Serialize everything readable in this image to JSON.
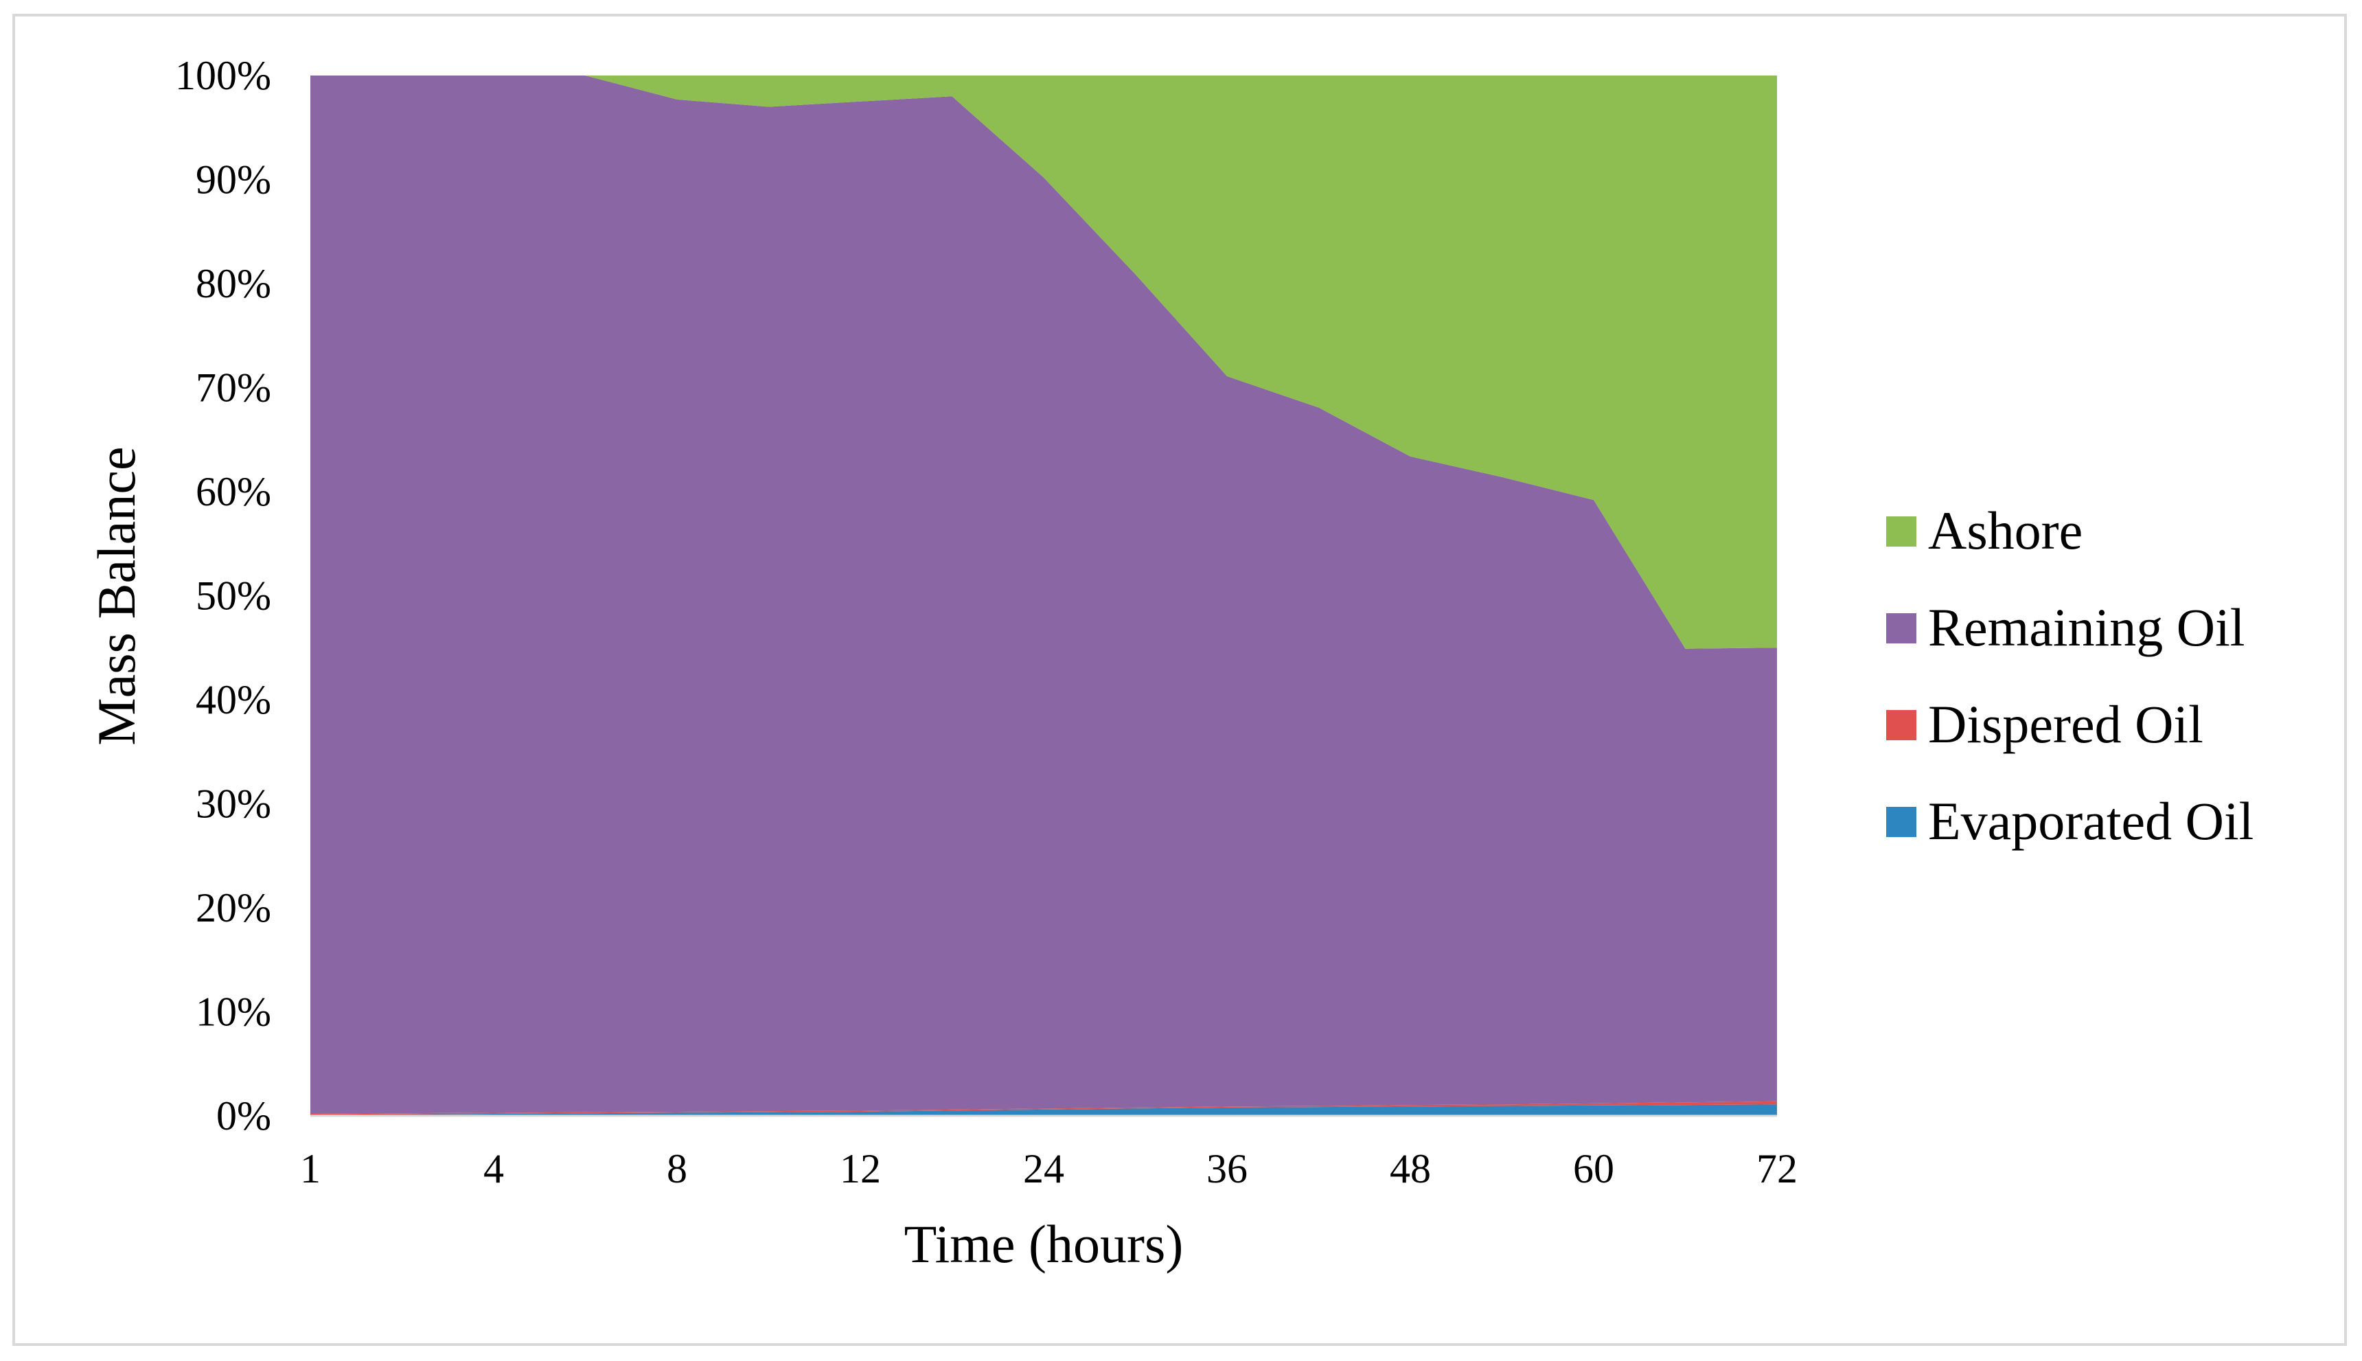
{
  "chart_data": {
    "type": "area",
    "stacked": true,
    "percent_stacked": true,
    "title": "",
    "xlabel": "Time (hours)",
    "ylabel": "Mass Balance",
    "x_tick_labels": [
      "1",
      "4",
      "8",
      "12",
      "24",
      "36",
      "48",
      "60",
      "72"
    ],
    "x_points": 17,
    "ylim": [
      0,
      100
    ],
    "y_ticks": [
      "0%",
      "10%",
      "20%",
      "30%",
      "40%",
      "50%",
      "60%",
      "70%",
      "80%",
      "90%",
      "100%"
    ],
    "grid": false,
    "legend_position": "right",
    "series": [
      {
        "name": "Evaporated Oil",
        "color": "#2e86c1",
        "values": [
          0.1,
          0.15,
          0.2,
          0.25,
          0.3,
          0.35,
          0.4,
          0.5,
          0.6,
          0.7,
          0.8,
          0.85,
          0.9,
          0.95,
          1.0,
          1.05,
          1.1
        ]
      },
      {
        "name": "Dispered Oil",
        "color": "#e0504f",
        "values": [
          0.1,
          0.1,
          0.1,
          0.1,
          0.1,
          0.1,
          0.1,
          0.1,
          0.1,
          0.1,
          0.1,
          0.1,
          0.15,
          0.15,
          0.2,
          0.25,
          0.3
        ]
      },
      {
        "name": "Remaining Oil",
        "color": "#8a66a5",
        "values": [
          99.8,
          99.75,
          99.7,
          99.65,
          97.3,
          96.45,
          97.2,
          97.4,
          89.5,
          80.1,
          70.2,
          67.1,
          62.3,
          60.3,
          58.0,
          43.6,
          43.6
        ]
      },
      {
        "name": "Ashore",
        "color": "#8ebd52",
        "values": [
          0,
          0,
          0,
          0,
          2.3,
          3.0,
          2.5,
          2.0,
          9.8,
          19.1,
          28.9,
          31.9,
          36.6,
          38.6,
          40.8,
          55.1,
          55.0
        ]
      }
    ]
  }
}
